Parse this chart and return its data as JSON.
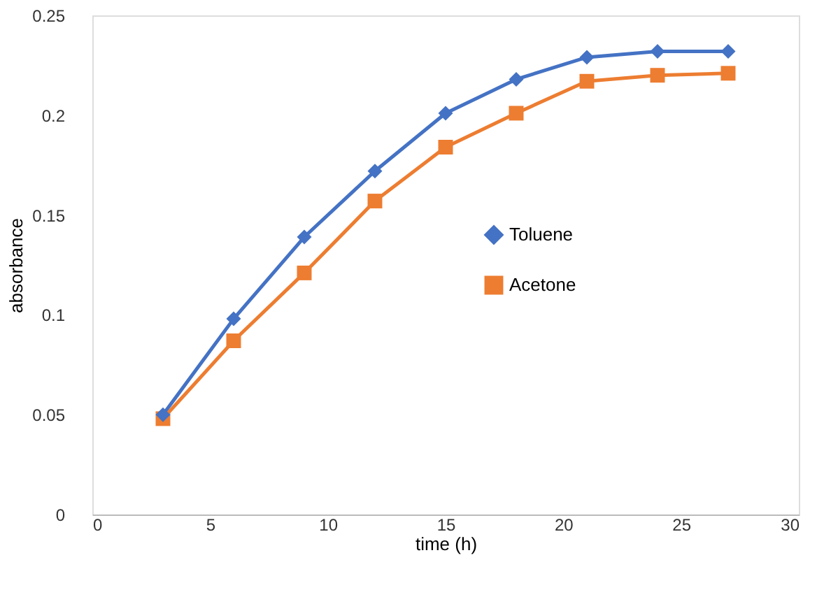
{
  "chart_data": {
    "type": "line",
    "xlabel": "time (h)",
    "ylabel": "absorbance",
    "x": [
      3,
      6,
      9,
      12,
      15,
      18,
      21,
      24,
      27
    ],
    "series": [
      {
        "name": "Toluene",
        "color": "#4472c4",
        "marker": "diamond",
        "values": [
          0.05,
          0.098,
          0.139,
          0.172,
          0.201,
          0.218,
          0.229,
          0.232,
          0.232
        ]
      },
      {
        "name": "Acetone",
        "color": "#ed7d31",
        "marker": "square",
        "values": [
          0.048,
          0.087,
          0.121,
          0.157,
          0.184,
          0.201,
          0.217,
          0.22,
          0.221
        ]
      }
    ],
    "xlim": [
      0,
      30
    ],
    "xticks": [
      0,
      5,
      10,
      15,
      20,
      25,
      30
    ],
    "ylim": [
      0,
      0.25
    ],
    "yticks": [
      0,
      0.05,
      0.1,
      0.15,
      0.2,
      0.25
    ],
    "grid": false,
    "legend": "right",
    "line_style": "solid"
  }
}
